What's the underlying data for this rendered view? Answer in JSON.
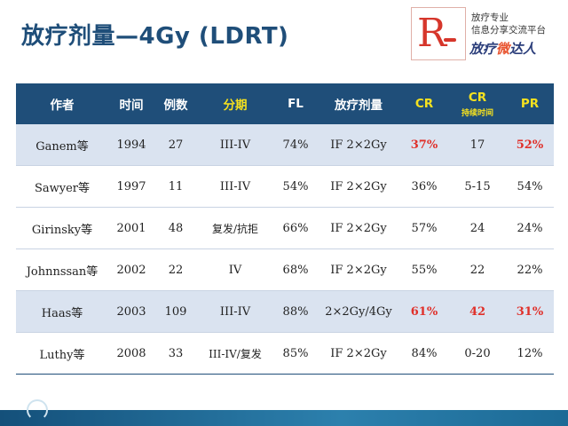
{
  "title": "放疗剂量—4Gy (LDRT)",
  "logo": {
    "letter": "R",
    "line1": "放疗专业",
    "line2": "信息分享交流平台",
    "brand_a": "放疗",
    "brand_b": "微",
    "brand_c": "达人"
  },
  "table": {
    "headers": [
      "作者",
      "时间",
      "例数",
      "分期",
      "FL",
      "放疗剂量",
      "CR",
      "CR",
      "PR"
    ],
    "header_sub": "持续时间",
    "rows": [
      [
        "Ganem等",
        "1994",
        "27",
        "III-IV",
        "74%",
        "IF 2×2Gy",
        "37%",
        "17",
        "52%"
      ],
      [
        "Sawyer等",
        "1997",
        "11",
        "III-IV",
        "54%",
        "IF 2×2Gy",
        "36%",
        "5-15",
        "54%"
      ],
      [
        "Girinsky等",
        "2001",
        "48",
        "复发/抗拒",
        "66%",
        "IF 2×2Gy",
        "57%",
        "24",
        "24%"
      ],
      [
        "Johnnssan等",
        "2002",
        "22",
        "IV",
        "68%",
        "IF 2×2Gy",
        "55%",
        "22",
        "22%"
      ],
      [
        "Haas等",
        "2003",
        "109",
        "III-IV",
        "88%",
        "2×2Gy/4Gy",
        "61%",
        "42",
        "31%"
      ],
      [
        "Luthy等",
        "2008",
        "33",
        "III-IV/复发",
        "85%",
        "IF 2×2Gy",
        "84%",
        "0-20",
        "12%"
      ]
    ]
  },
  "colors": {
    "header_bg": "#1f4e79",
    "highlight_header": "#f5e11f",
    "highlight_value": "#e0302a",
    "row_shade": "#dae3f0"
  }
}
